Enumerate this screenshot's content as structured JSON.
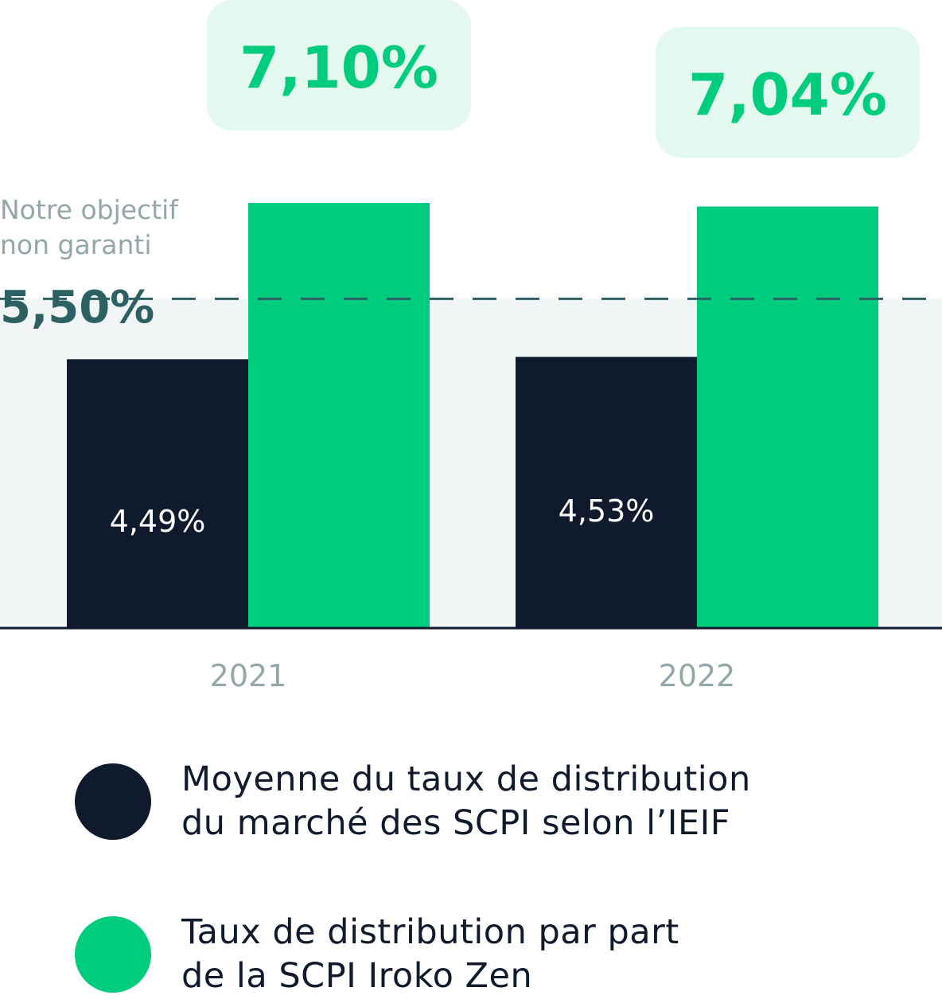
{
  "chart_data": {
    "type": "bar",
    "categories": [
      "2021",
      "2022"
    ],
    "series": [
      {
        "name": "Moyenne du taux de distribution du marché des SCPI selon l’IEIF",
        "values": [
          4.49,
          4.53
        ],
        "labels": [
          "4,49%",
          "4,53%"
        ],
        "color": "#0f1b2d"
      },
      {
        "name": "Taux de distribution par part de la SCPI Iroko Zen",
        "values": [
          7.1,
          7.04
        ],
        "labels": [
          "7,10%",
          "7,04%"
        ],
        "color": "#00cc7e"
      }
    ],
    "objective": {
      "caption": "Notre objectif\nnon garanti",
      "label": "5,50%",
      "value": 5.5
    },
    "grid": false,
    "legend_position": "bottom"
  },
  "legend": [
    {
      "text": "Moyenne du taux de distribution\ndu marché des SCPI selon l’IEIF",
      "color": "#0f1b2d"
    },
    {
      "text": "Taux de distribution par part\n de la SCPI Iroko Zen",
      "color": "#00cc7e"
    }
  ],
  "colors": {
    "dark": "#0f1b2d",
    "green": "#00cc7e",
    "green_light": "#e3f8ef",
    "objective_text": "#2d6063",
    "muted_text": "#93a7aa",
    "band": "#f2f5f6"
  }
}
